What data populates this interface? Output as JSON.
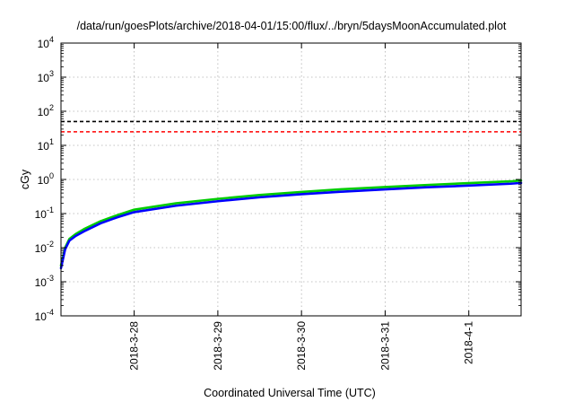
{
  "chart_data": {
    "type": "line",
    "title": "/data/run/goesPlots/archive/2018-04-01/15:00/flux/../bryn/5daysMoonAccumulated.plot",
    "xlabel": "Coordinated Universal Time (UTC)",
    "ylabel": "cGy",
    "y_scale": "log",
    "xlim": [
      "2018-03-27T03:00",
      "2018-04-01T15:00"
    ],
    "ylim": [
      0.0001,
      10000
    ],
    "grid": true,
    "x_ticks": [
      "2018-3-28",
      "2018-3-29",
      "2018-3-30",
      "2018-3-31",
      "2018-4-1"
    ],
    "y_ticks": [
      {
        "base": "10",
        "exp": "-4"
      },
      {
        "base": "10",
        "exp": "-3"
      },
      {
        "base": "10",
        "exp": "-2"
      },
      {
        "base": "10",
        "exp": "-1"
      },
      {
        "base": "10",
        "exp": "0"
      },
      {
        "base": "10",
        "exp": "1"
      },
      {
        "base": "10",
        "exp": "2"
      },
      {
        "base": "10",
        "exp": "3"
      },
      {
        "base": "10",
        "exp": "4"
      }
    ],
    "reference_lines": [
      {
        "y": 50,
        "color": "#000000",
        "style": "dashed"
      },
      {
        "y": 25,
        "color": "#ff0000",
        "style": "dashed"
      }
    ],
    "series": [
      {
        "color": "#00cc00",
        "x": [
          "2018-03-27T03:00",
          "2018-03-27T04:12",
          "2018-03-27T05:24",
          "2018-03-27T07:12",
          "2018-03-27T09:36",
          "2018-03-27T14:24",
          "2018-03-27T19:12",
          "2018-03-28T00:00",
          "2018-03-28T12:00",
          "2018-03-29T00:00",
          "2018-03-29T12:00",
          "2018-03-30T00:00",
          "2018-03-30T12:00",
          "2018-03-31T00:00",
          "2018-03-31T12:00",
          "2018-04-01T00:00",
          "2018-04-01T12:00",
          "2018-04-01T15:00"
        ],
        "y": [
          0.003,
          0.01,
          0.018,
          0.025,
          0.035,
          0.06,
          0.09,
          0.13,
          0.2,
          0.27,
          0.35,
          0.43,
          0.52,
          0.6,
          0.69,
          0.78,
          0.88,
          0.93
        ]
      },
      {
        "color": "#0000ff",
        "x": [
          "2018-03-27T03:00",
          "2018-03-27T04:12",
          "2018-03-27T05:24",
          "2018-03-27T07:12",
          "2018-03-27T09:36",
          "2018-03-27T14:24",
          "2018-03-27T19:12",
          "2018-03-28T00:00",
          "2018-03-28T12:00",
          "2018-03-29T00:00",
          "2018-03-29T12:00",
          "2018-03-30T00:00",
          "2018-03-30T12:00",
          "2018-03-31T00:00",
          "2018-03-31T12:00",
          "2018-04-01T00:00",
          "2018-04-01T12:00",
          "2018-04-01T15:00"
        ],
        "y": [
          0.0025,
          0.009,
          0.016,
          0.022,
          0.03,
          0.052,
          0.078,
          0.11,
          0.17,
          0.23,
          0.3,
          0.37,
          0.44,
          0.51,
          0.59,
          0.66,
          0.75,
          0.79
        ]
      }
    ]
  }
}
